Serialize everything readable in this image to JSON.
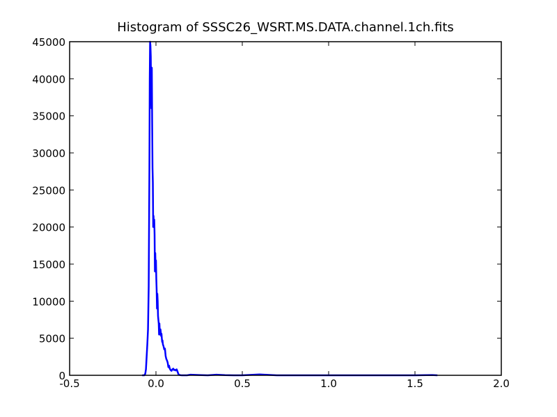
{
  "chart_data": {
    "type": "line",
    "title": "Histogram of SSSC26_WSRT.MS.DATA.channel.1ch.fits",
    "xlabel": "",
    "ylabel": "",
    "xlim": [
      -0.5,
      2.0
    ],
    "ylim": [
      0,
      45000
    ],
    "grid": false,
    "legend": "none",
    "x_ticks": [
      "-0.5",
      "0.0",
      "0.5",
      "1.0",
      "1.5",
      "2.0"
    ],
    "y_ticks": [
      "0",
      "5000",
      "10000",
      "15000",
      "20000",
      "25000",
      "30000",
      "35000",
      "40000",
      "45000"
    ],
    "series": [
      {
        "color": "#0000ff",
        "x": [
          -0.08,
          -0.068,
          -0.062,
          -0.058,
          -0.054,
          -0.05,
          -0.046,
          -0.042,
          -0.038,
          -0.036,
          -0.034,
          -0.032,
          -0.03,
          -0.028,
          -0.026,
          -0.024,
          -0.022,
          -0.02,
          -0.018,
          -0.016,
          -0.014,
          -0.012,
          -0.01,
          -0.008,
          -0.006,
          -0.004,
          -0.002,
          0.0,
          0.002,
          0.004,
          0.006,
          0.008,
          0.01,
          0.012,
          0.014,
          0.016,
          0.018,
          0.02,
          0.022,
          0.024,
          0.026,
          0.028,
          0.03,
          0.032,
          0.034,
          0.036,
          0.038,
          0.04,
          0.044,
          0.048,
          0.052,
          0.056,
          0.06,
          0.064,
          0.068,
          0.072,
          0.076,
          0.08,
          0.085,
          0.09,
          0.095,
          0.1,
          0.105,
          0.11,
          0.115,
          0.12,
          0.125,
          0.13,
          0.135,
          0.14,
          0.145,
          0.15,
          0.16,
          0.18,
          0.2,
          0.25,
          0.3,
          0.35,
          0.4,
          0.45,
          0.5,
          0.55,
          0.6,
          0.65,
          0.7,
          0.8,
          0.9,
          1.0,
          1.1,
          1.2,
          1.3,
          1.4,
          1.5,
          1.6,
          1.63
        ],
        "y": [
          0,
          0,
          200,
          800,
          2500,
          4200,
          6200,
          12000,
          28000,
          40000,
          45000,
          44500,
          43000,
          38000,
          36000,
          41500,
          34000,
          28000,
          26000,
          20000,
          21500,
          20000,
          21000,
          19000,
          14000,
          16500,
          14500,
          15500,
          13000,
          11500,
          9000,
          11000,
          10000,
          8000,
          7500,
          7000,
          5500,
          7000,
          6000,
          5500,
          6200,
          5800,
          5300,
          5600,
          5000,
          4500,
          4700,
          4200,
          3900,
          3500,
          3600,
          2600,
          2200,
          2000,
          1700,
          1100,
          1300,
          900,
          700,
          600,
          800,
          900,
          700,
          750,
          650,
          800,
          500,
          150,
          60,
          20,
          10,
          5,
          0,
          0,
          80,
          30,
          0,
          80,
          20,
          0,
          0,
          60,
          120,
          60,
          0,
          0,
          0,
          0,
          0,
          0,
          0,
          0,
          0,
          40,
          0
        ]
      }
    ]
  }
}
